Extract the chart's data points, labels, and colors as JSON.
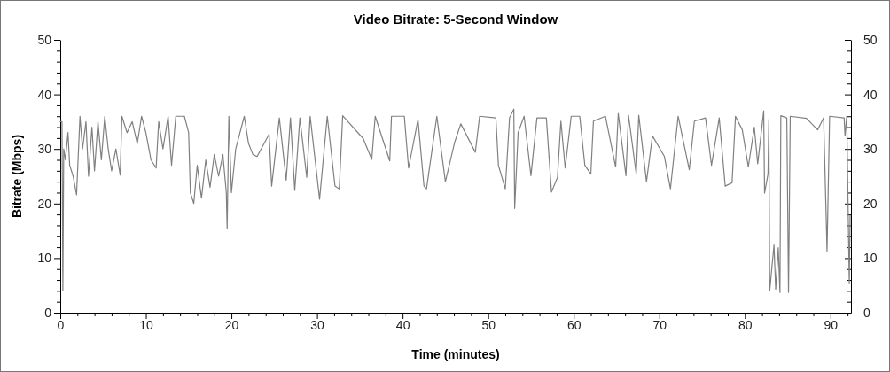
{
  "chart_data": {
    "type": "line",
    "title": "Video Bitrate: 5-Second Window",
    "xlabel": "Time (minutes)",
    "ylabel": "Bitrate (Mbps)",
    "xlim": [
      0,
      92.4
    ],
    "xticks": [
      0,
      {
        "value": 2,
        "label": null
      },
      {
        "value": 4,
        "label": null
      },
      {
        "value": 6,
        "label": null
      },
      {
        "value": 8,
        "label": null
      },
      10,
      {
        "value": 12,
        "label": null
      },
      {
        "value": 14,
        "label": null
      },
      {
        "value": 16,
        "label": null
      },
      {
        "value": 18,
        "label": null
      },
      20,
      {
        "value": 22,
        "label": null
      },
      {
        "value": 24,
        "label": null
      },
      {
        "value": 26,
        "label": null
      },
      {
        "value": 28,
        "label": null
      },
      30,
      {
        "value": 32,
        "label": null
      },
      {
        "value": 34,
        "label": null
      },
      {
        "value": 36,
        "label": null
      },
      {
        "value": 38,
        "label": null
      },
      40,
      {
        "value": 42,
        "label": null
      },
      {
        "value": 44,
        "label": null
      },
      {
        "value": 46,
        "label": null
      },
      {
        "value": 48,
        "label": null
      },
      50,
      {
        "value": 52,
        "label": null
      },
      {
        "value": 54,
        "label": null
      },
      {
        "value": 56,
        "label": null
      },
      {
        "value": 58,
        "label": null
      },
      60,
      {
        "value": 62,
        "label": null
      },
      {
        "value": 64,
        "label": null
      },
      {
        "value": 66,
        "label": null
      },
      {
        "value": 68,
        "label": null
      },
      70,
      {
        "value": 72,
        "label": null
      },
      {
        "value": 74,
        "label": null
      },
      {
        "value": 76,
        "label": null
      },
      {
        "value": 78,
        "label": null
      },
      80,
      {
        "value": 82,
        "label": null
      },
      {
        "value": 84,
        "label": null
      },
      {
        "value": 86,
        "label": null
      },
      {
        "value": 88,
        "label": null
      },
      90,
      {
        "value": 92,
        "label": null
      }
    ],
    "ylim": [
      0,
      50
    ],
    "yticks": [
      0,
      {
        "value": 2,
        "label": null
      },
      {
        "value": 4,
        "label": null
      },
      {
        "value": 6,
        "label": null
      },
      {
        "value": 8,
        "label": null
      },
      10,
      {
        "value": 12,
        "label": null
      },
      {
        "value": 14,
        "label": null
      },
      {
        "value": 16,
        "label": null
      },
      {
        "value": 18,
        "label": null
      },
      20,
      {
        "value": 22,
        "label": null
      },
      {
        "value": 24,
        "label": null
      },
      {
        "value": 26,
        "label": null
      },
      {
        "value": 28,
        "label": null
      },
      30,
      {
        "value": 32,
        "label": null
      },
      {
        "value": 34,
        "label": null
      },
      {
        "value": 36,
        "label": null
      },
      {
        "value": 38,
        "label": null
      },
      40,
      {
        "value": 42,
        "label": null
      },
      {
        "value": 44,
        "label": null
      },
      {
        "value": 46,
        "label": null
      },
      {
        "value": 48,
        "label": null
      },
      50
    ],
    "y2lim": [
      0,
      50
    ],
    "y2ticks": [
      0,
      {
        "value": 2,
        "label": null
      },
      {
        "value": 4,
        "label": null
      },
      {
        "value": 6,
        "label": null
      },
      {
        "value": 8,
        "label": null
      },
      10,
      {
        "value": 12,
        "label": null
      },
      {
        "value": 14,
        "label": null
      },
      {
        "value": 16,
        "label": null
      },
      {
        "value": 18,
        "label": null
      },
      20,
      {
        "value": 22,
        "label": null
      },
      {
        "value": 24,
        "label": null
      },
      {
        "value": 26,
        "label": null
      },
      {
        "value": 28,
        "label": null
      },
      30,
      {
        "value": 32,
        "label": null
      },
      {
        "value": 34,
        "label": null
      },
      {
        "value": 36,
        "label": null
      },
      {
        "value": 38,
        "label": null
      },
      40,
      {
        "value": 42,
        "label": null
      },
      {
        "value": 44,
        "label": null
      },
      {
        "value": 46,
        "label": null
      },
      {
        "value": 48,
        "label": null
      },
      50
    ],
    "grid": false,
    "marker": "none",
    "line_style": "solid",
    "series": [
      {
        "color": "#808080",
        "x": [
          0,
          0.2,
          0.3,
          0.4,
          0.6,
          0.9,
          1.1,
          1.5,
          1.9,
          2.3,
          2.6,
          3,
          3.3,
          3.7,
          4,
          4.4,
          4.8,
          5.2,
          5.6,
          6,
          6.5,
          7,
          7.2,
          7.8,
          8.4,
          9,
          9.5,
          10,
          10.6,
          11.2,
          11.5,
          12,
          12.6,
          13,
          13.5,
          14.5,
          15,
          15.2,
          15.6,
          16,
          16.5,
          17,
          17.5,
          18,
          18.5,
          19,
          19.4,
          19.5,
          19.7,
          20,
          20.5,
          21,
          21.5,
          22,
          22.5,
          23,
          24.4,
          24.7,
          25.6,
          26.4,
          26.9,
          27.4,
          28,
          28.8,
          29.2,
          30.3,
          31.2,
          32.1,
          32.6,
          33,
          35.4,
          36.4,
          36.8,
          38.5,
          38.7,
          40.2,
          40.7,
          41.8,
          42.5,
          42.8,
          44,
          45,
          46.1,
          46.8,
          48.5,
          49,
          50.9,
          51.2,
          52,
          52.5,
          53,
          53.1,
          53.5,
          54.2,
          55,
          55.7,
          56.8,
          57.4,
          58.1,
          58.5,
          59,
          59.7,
          60.7,
          61.3,
          62,
          62.3,
          63.7,
          64.9,
          65.2,
          66.1,
          66.4,
          67.3,
          67.6,
          68.5,
          69.2,
          70.6,
          71.3,
          72.2,
          73.5,
          74.1,
          75.4,
          76.1,
          77,
          77.7,
          78.5,
          78.9,
          79.7,
          80.4,
          81.1,
          81.5,
          82.2,
          82.3,
          82.7,
          82.8,
          82.9,
          83.4,
          83.6,
          83.9,
          84.1,
          84.2,
          84.9,
          85.1,
          85.3,
          87.2,
          88.5,
          89.2,
          89.6,
          89.9,
          91.6,
          91.7,
          91.9,
          92.2,
          92.3
        ],
        "values": [
          35,
          35,
          4,
          30,
          28,
          33,
          27,
          25,
          21.6,
          36,
          30,
          35,
          25,
          34,
          26,
          35,
          28,
          36,
          30,
          26,
          30,
          25.2,
          36,
          33,
          35,
          31,
          36,
          33,
          28,
          26.5,
          35,
          30,
          36,
          27,
          36,
          36,
          33,
          22,
          20,
          27,
          21,
          28,
          23,
          29,
          25,
          29,
          22,
          15.4,
          36,
          22,
          30,
          33,
          36,
          31,
          29,
          28.6,
          32.7,
          23.2,
          35.7,
          24.3,
          35.7,
          22.4,
          35.7,
          24.8,
          36,
          20.8,
          36,
          23.2,
          22.7,
          36.1,
          31.9,
          28.1,
          36,
          27.8,
          36,
          36,
          26.5,
          35.4,
          23.2,
          22.7,
          36,
          24,
          31.3,
          34.6,
          29.4,
          36,
          35.7,
          27,
          22.7,
          35.7,
          37.3,
          19.1,
          33,
          36,
          25.1,
          35.7,
          35.7,
          22.1,
          24.8,
          35.1,
          26.5,
          36,
          36,
          27,
          25.4,
          35.1,
          36,
          26.7,
          36.5,
          25.1,
          36.2,
          25.4,
          36.2,
          24,
          32.4,
          28.6,
          22.7,
          36,
          26.2,
          35.1,
          35.7,
          27,
          35.7,
          23.2,
          23.8,
          36,
          33.5,
          26.7,
          34,
          27.3,
          37,
          21.9,
          25.4,
          35.4,
          4,
          12.4,
          4.3,
          11.9,
          3.7,
          36.1,
          35.7,
          3.7,
          36,
          35.6,
          33.5,
          35.7,
          11.3,
          36,
          35.7,
          32.4,
          36,
          5.3,
          17.8
        ]
      }
    ]
  }
}
